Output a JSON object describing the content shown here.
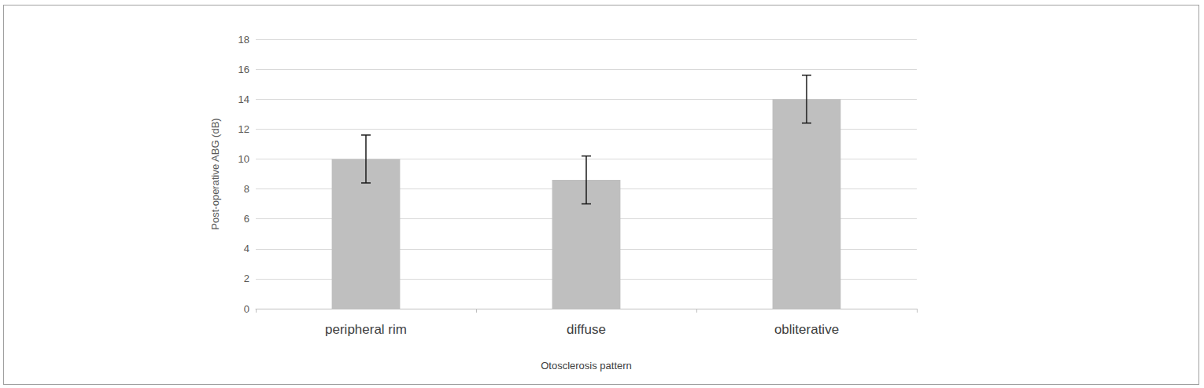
{
  "chart_data": {
    "type": "bar",
    "categories": [
      "peripheral rim",
      "diffuse",
      "obliterative"
    ],
    "values": [
      10,
      8.6,
      14
    ],
    "errors": [
      1.6,
      1.6,
      1.6
    ],
    "color": "#bfbfbf",
    "x_label": "Otosclerosis pattern",
    "y_label": "Post-operative ABG (dB)",
    "ylim": [
      0,
      18
    ],
    "yticks": [
      0,
      2,
      4,
      6,
      8,
      10,
      12,
      14,
      16,
      18
    ],
    "grid": true
  }
}
